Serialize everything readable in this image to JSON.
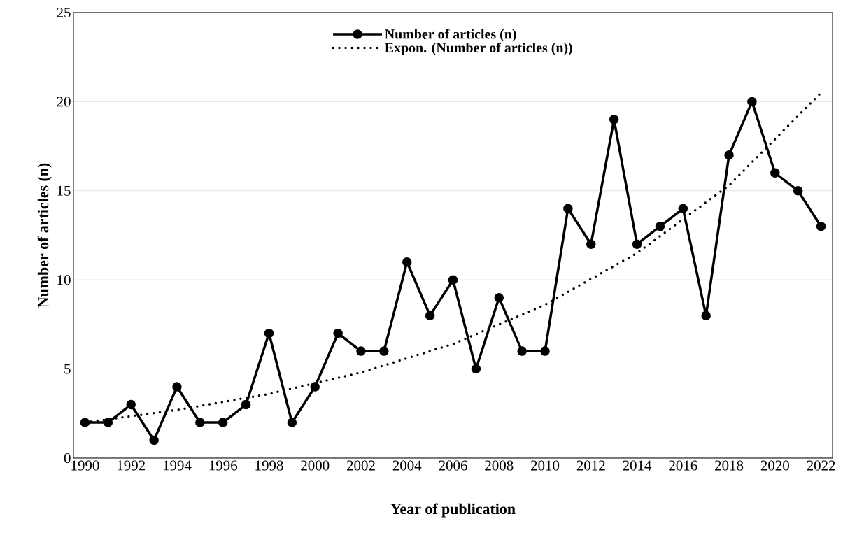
{
  "chart_data": {
    "type": "line",
    "xlabel": "Year of publication",
    "ylabel": "Number of articles (n)",
    "xlim": [
      1989.5,
      2022.5
    ],
    "xticks": [
      1990,
      1992,
      1994,
      1996,
      1998,
      2000,
      2002,
      2004,
      2006,
      2008,
      2010,
      2012,
      2014,
      2016,
      2018,
      2020,
      2022
    ],
    "ylim": [
      0,
      25
    ],
    "yticks": [
      0,
      5,
      10,
      15,
      20,
      25
    ],
    "grid": "y",
    "legend": "top",
    "series": [
      {
        "name": "Number of articles (n)",
        "color": "#000000",
        "marker": "circle",
        "line_style": "solid",
        "x": [
          1990,
          1991,
          1992,
          1993,
          1994,
          1995,
          1996,
          1997,
          1998,
          1999,
          2000,
          2001,
          2002,
          2003,
          2004,
          2005,
          2006,
          2007,
          2008,
          2009,
          2010,
          2011,
          2012,
          2013,
          2014,
          2015,
          2016,
          2017,
          2018,
          2019,
          2020,
          2021,
          2022
        ],
        "values": [
          2,
          2,
          3,
          1,
          4,
          2,
          2,
          3,
          7,
          2,
          4,
          7,
          6,
          6,
          11,
          8,
          10,
          5,
          9,
          6,
          6,
          14,
          12,
          19,
          12,
          13,
          14,
          8,
          17,
          20,
          16,
          15,
          13
        ]
      },
      {
        "name": "Expon. (Number of articles (n))",
        "color": "#000000",
        "marker": "none",
        "line_style": "dotted",
        "x": [
          1990,
          1994,
          1998,
          2002,
          2006,
          2010,
          2014,
          2018,
          2022
        ],
        "values": [
          2.0,
          2.7,
          3.6,
          4.8,
          6.4,
          8.6,
          11.5,
          15.3,
          20.5
        ]
      }
    ]
  }
}
